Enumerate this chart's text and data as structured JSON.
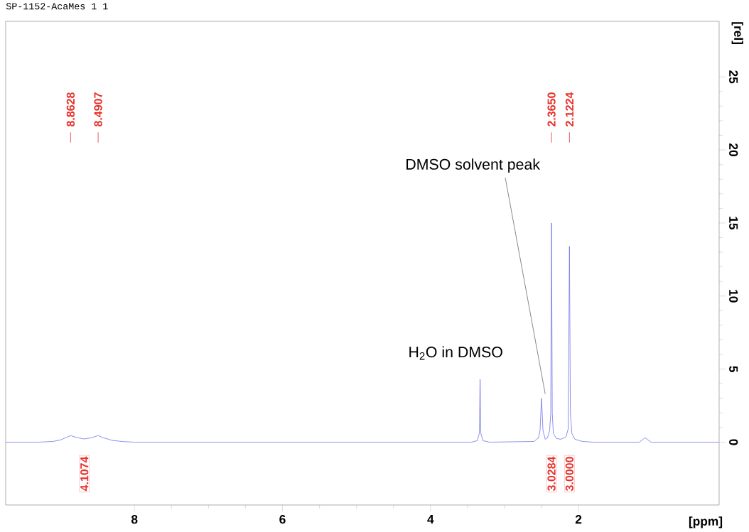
{
  "chart_data": {
    "type": "line",
    "title": "SP-1152-AcaMes  1  1",
    "xlabel": "[ppm]",
    "ylabel": "[rel]",
    "xlim": [
      9.74,
      0.1
    ],
    "xticks": [
      8,
      6,
      4,
      2
    ],
    "ylim": [
      -4.3,
      28.8
    ],
    "yticks": [
      0,
      5,
      10,
      15,
      20,
      25
    ],
    "series": [
      {
        "color": "#6f74e8",
        "x": [
          9.74,
          9.3,
          9.1,
          9.0,
          8.93,
          8.8628,
          8.78,
          8.68,
          8.58,
          8.4907,
          8.42,
          8.3,
          8.15,
          8.0,
          3.45,
          3.37,
          3.34,
          3.33,
          3.32,
          3.29,
          3.2,
          2.6,
          2.54,
          2.52,
          2.5,
          2.48,
          2.45,
          2.42,
          2.39,
          2.375,
          2.365,
          2.355,
          2.34,
          2.3,
          2.24,
          2.17,
          2.14,
          2.1224,
          2.11,
          2.09,
          2.05,
          1.95,
          1.8,
          1.18,
          1.1,
          1.02,
          0.1
        ],
        "values": [
          0,
          0,
          0.05,
          0.15,
          0.3,
          0.45,
          0.32,
          0.22,
          0.3,
          0.45,
          0.3,
          0.12,
          0.04,
          0,
          0,
          0.1,
          0.6,
          4.3,
          0.6,
          0.1,
          0,
          0.05,
          0.3,
          0.8,
          3.0,
          0.8,
          0.2,
          0.3,
          0.8,
          2.0,
          15.0,
          2.0,
          0.6,
          0.25,
          0.2,
          0.35,
          0.9,
          13.4,
          2.0,
          0.6,
          0.2,
          0.05,
          0,
          0,
          0.3,
          0,
          0
        ]
      }
    ],
    "annotations": [
      {
        "text": "8.8628",
        "x": 8.8628
      },
      {
        "text": "8.4907",
        "x": 8.4907
      },
      {
        "text": "2.3650",
        "x": 2.365
      },
      {
        "text": "2.1224",
        "x": 2.1224
      },
      "4.1074",
      "3.0284",
      "3.0000",
      {
        "text": "DMSO solvent peak",
        "x": 2.5,
        "y": 3.0
      },
      {
        "text": "H$_{2}$O in DMSO",
        "x": 3.33,
        "y": 4.3
      }
    ]
  }
}
